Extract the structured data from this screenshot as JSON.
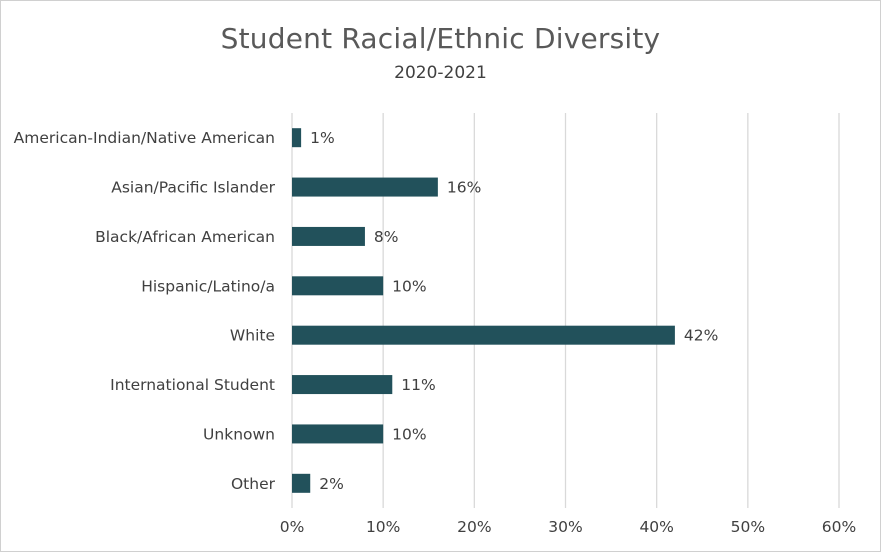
{
  "chart_data": {
    "type": "bar",
    "orientation": "horizontal",
    "title": "Student Racial/Ethnic Diversity",
    "subtitle": "2020-2021",
    "xlabel": "",
    "ylabel": "",
    "categories": [
      "American-Indian/Native American",
      "Asian/Pacific Islander",
      "Black/African American",
      "Hispanic/Latino/a",
      "White",
      "International Student",
      "Unknown",
      "Other"
    ],
    "values": [
      1,
      16,
      8,
      10,
      42,
      11,
      10,
      2
    ],
    "data_labels": [
      "1%",
      "16%",
      "8%",
      "10%",
      "42%",
      "11%",
      "10%",
      "2%"
    ],
    "xlim": [
      0,
      60
    ],
    "x_ticks": [
      "0%",
      "10%",
      "20%",
      "30%",
      "40%",
      "50%",
      "60%"
    ],
    "grid": "vertical",
    "bar_color": "#22515b",
    "grid_color": "#d9d9d9",
    "legend": "none"
  }
}
